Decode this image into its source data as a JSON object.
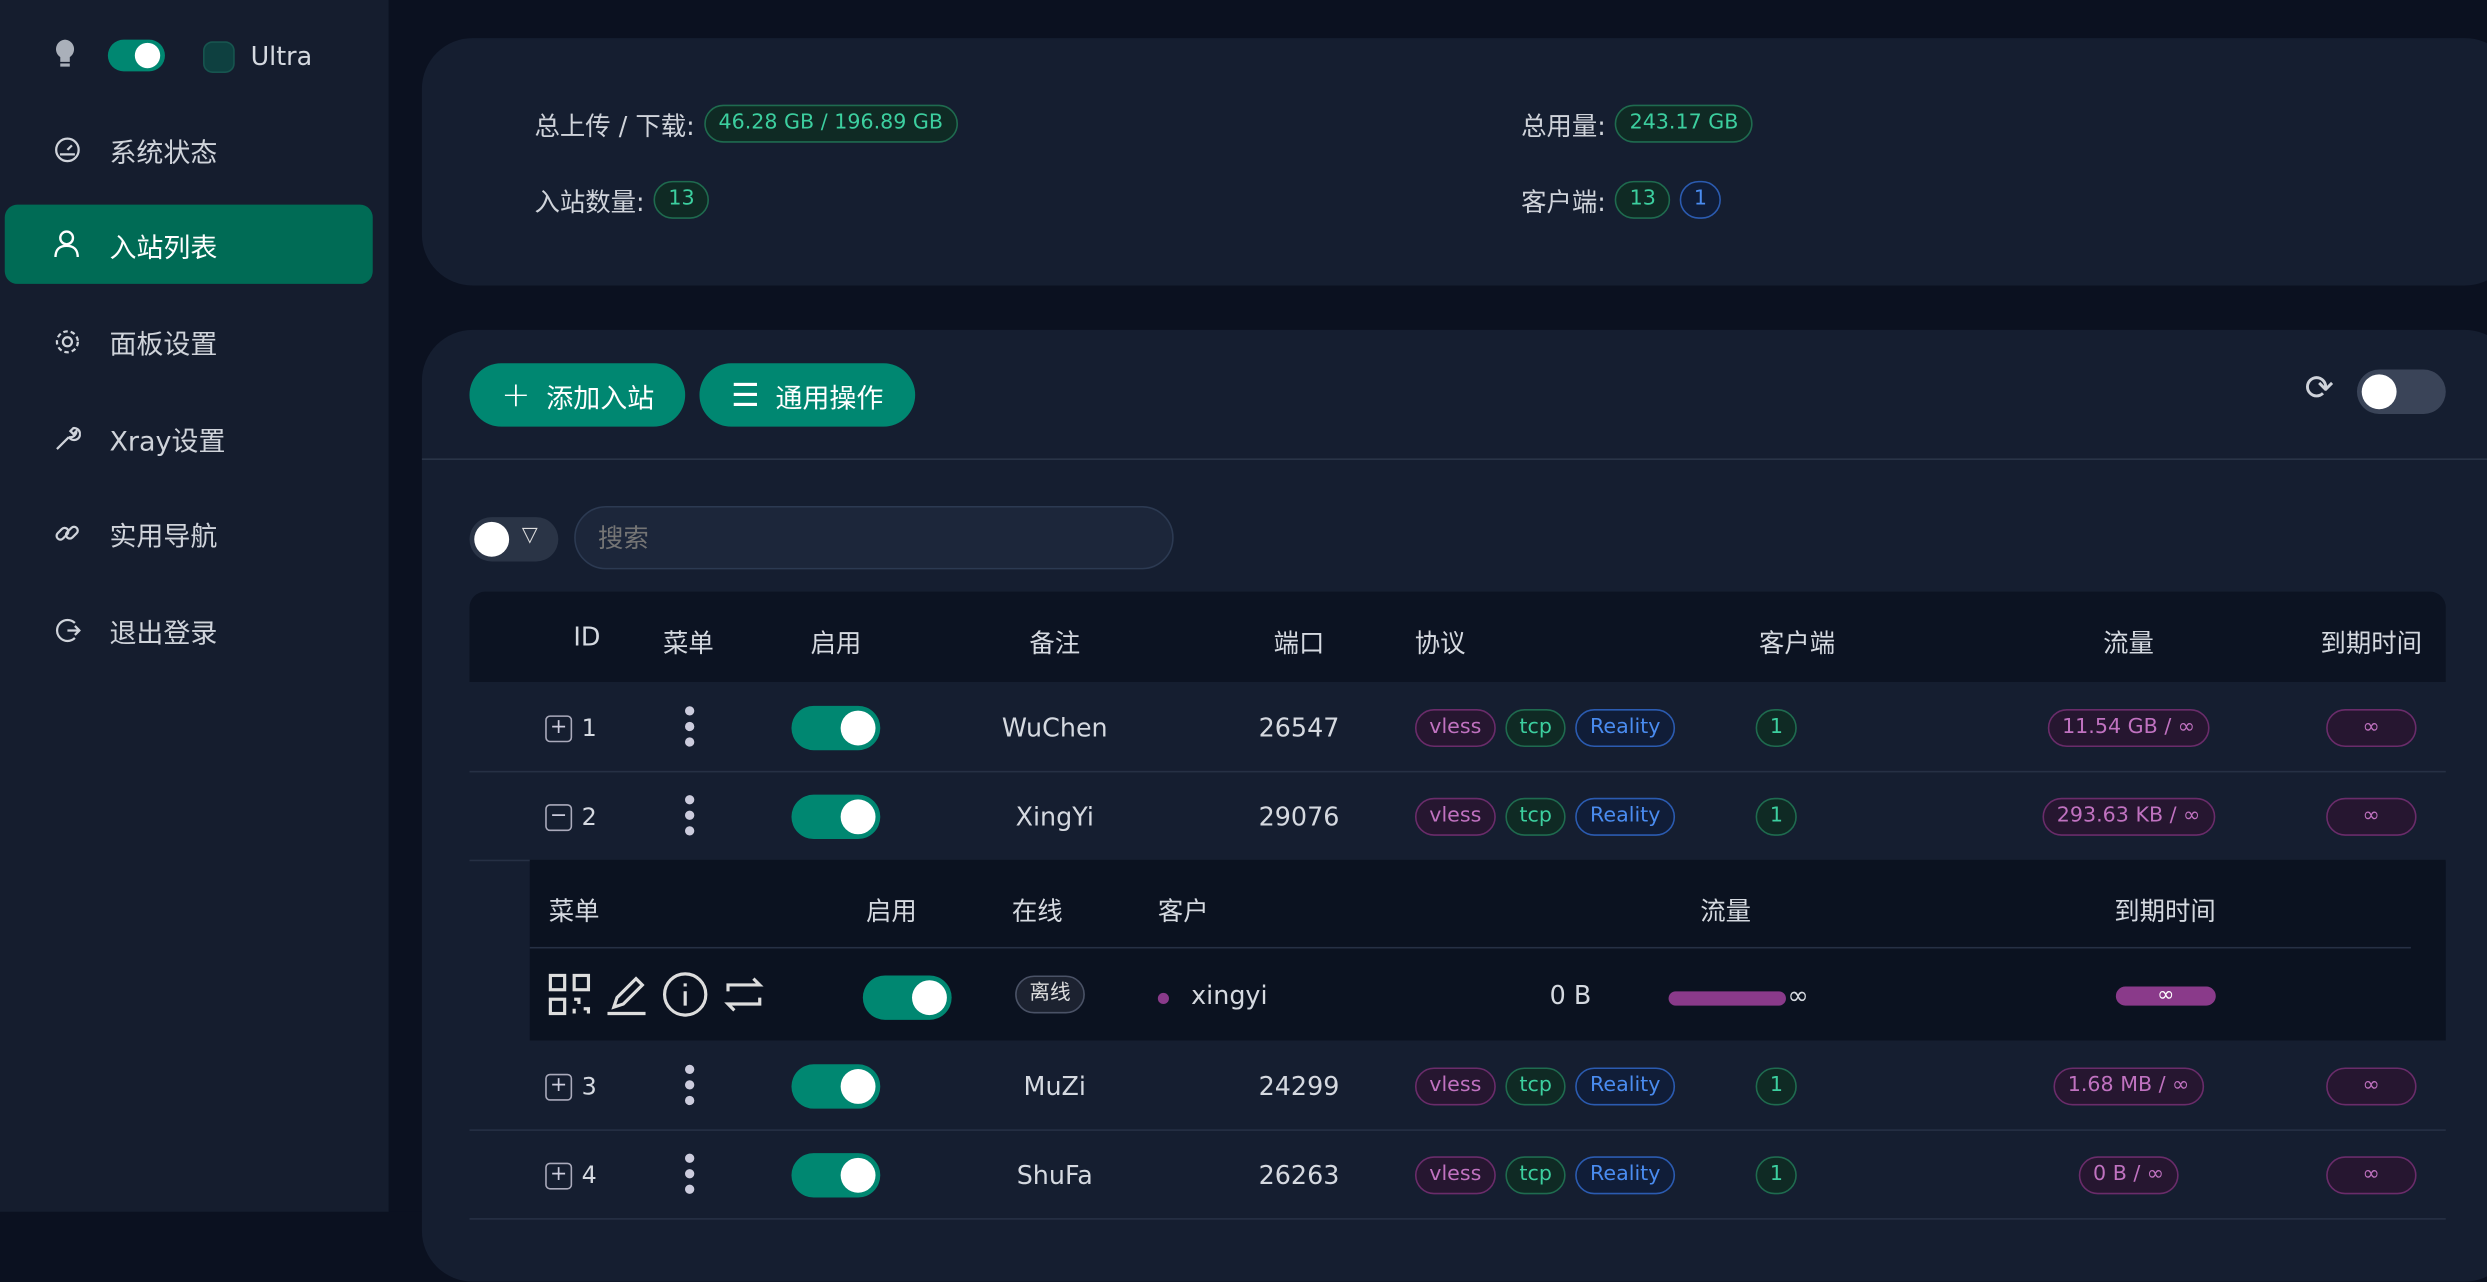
{
  "sidebar": {
    "theme_label": "Ultra",
    "items": [
      {
        "label": "系统状态",
        "icon": "dashboard-icon"
      },
      {
        "label": "入站列表",
        "icon": "user-icon",
        "active": true
      },
      {
        "label": "面板设置",
        "icon": "gear-icon"
      },
      {
        "label": "Xray设置",
        "icon": "wrench-icon"
      },
      {
        "label": "实用导航",
        "icon": "link-icon"
      },
      {
        "label": "退出登录",
        "icon": "logout-icon"
      }
    ]
  },
  "stats": {
    "updown_label": "总上传 / 下载:",
    "updown_value": "46.28 GB / 196.89 GB",
    "usage_label": "总用量:",
    "usage_value": "243.17 GB",
    "inbound_label": "入站数量:",
    "inbound_value": "13",
    "clients_label": "客户端:",
    "clients_value": "13",
    "clients_online": "1"
  },
  "toolbar": {
    "add_label": "添加入站",
    "general_label": "通用操作",
    "search_placeholder": "搜索"
  },
  "table": {
    "headers": {
      "id": "ID",
      "menu": "菜单",
      "enable": "启用",
      "remark": "备注",
      "port": "端口",
      "protocol": "协议",
      "clients": "客户端",
      "traffic": "流量",
      "expiry": "到期时间"
    },
    "rows": [
      {
        "id": "1",
        "remark": "WuChen",
        "port": "26547",
        "protocol": "vless",
        "network": "tcp",
        "security": "Reality",
        "clients": "1",
        "traffic": "11.54 GB / ∞",
        "expiry": "∞",
        "expanded": false,
        "enabled": true
      },
      {
        "id": "2",
        "remark": "XingYi",
        "port": "29076",
        "protocol": "vless",
        "network": "tcp",
        "security": "Reality",
        "clients": "1",
        "traffic": "293.63 KB / ∞",
        "expiry": "∞",
        "expanded": true,
        "enabled": true
      },
      {
        "id": "3",
        "remark": "MuZi",
        "port": "24299",
        "protocol": "vless",
        "network": "tcp",
        "security": "Reality",
        "clients": "1",
        "traffic": "1.68 MB / ∞",
        "expiry": "∞",
        "expanded": false,
        "enabled": true
      },
      {
        "id": "4",
        "remark": "ShuFa",
        "port": "26263",
        "protocol": "vless",
        "network": "tcp",
        "security": "Reality",
        "clients": "1",
        "traffic": "0 B / ∞",
        "expiry": "∞",
        "expanded": false,
        "enabled": true
      }
    ]
  },
  "client_table": {
    "headers": {
      "menu": "菜单",
      "enable": "启用",
      "online": "在线",
      "client": "客户",
      "traffic": "流量",
      "expiry": "到期时间"
    },
    "rows": [
      {
        "status": "离线",
        "email": "xingyi",
        "traffic": "0 B",
        "limit": "∞",
        "expiry": "∞",
        "enabled": true
      }
    ]
  },
  "colors": {
    "accent": "#008771",
    "purple": "#c072c0",
    "green": "#3ccf9f",
    "blue": "#4a8cf0"
  }
}
